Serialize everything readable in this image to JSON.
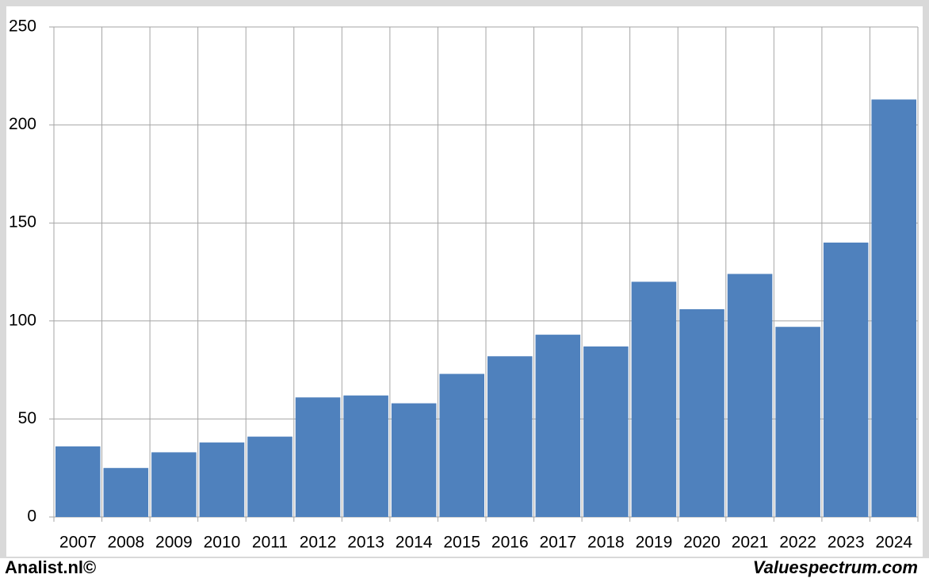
{
  "chart_data": {
    "type": "bar",
    "categories": [
      "2007",
      "2008",
      "2009",
      "2010",
      "2011",
      "2012",
      "2013",
      "2014",
      "2015",
      "2016",
      "2017",
      "2018",
      "2019",
      "2020",
      "2021",
      "2022",
      "2023",
      "2024"
    ],
    "values": [
      36,
      25,
      33,
      38,
      41,
      61,
      62,
      58,
      73,
      82,
      93,
      87,
      120,
      106,
      124,
      97,
      140,
      213
    ],
    "color": "#4f81bd",
    "ylim": [
      0,
      250
    ],
    "yticks": [
      0,
      50,
      100,
      150,
      200,
      250
    ],
    "grid": true
  },
  "footer": {
    "left": "Analist.nl©",
    "right": "Valuespectrum.com"
  }
}
